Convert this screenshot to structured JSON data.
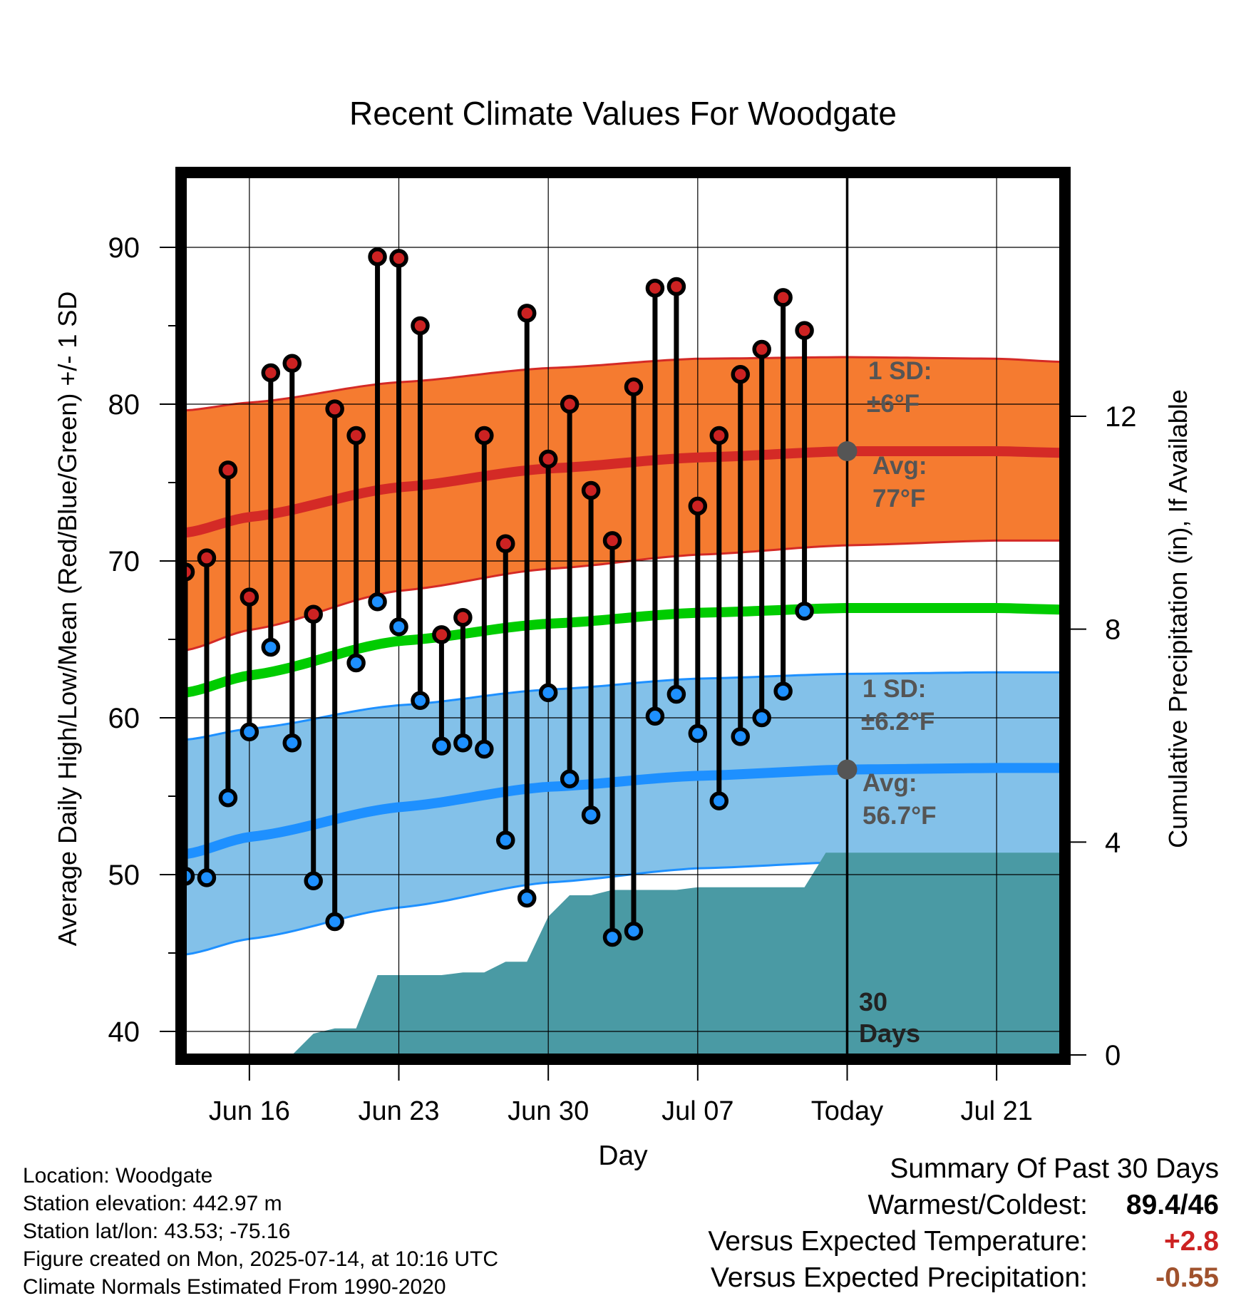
{
  "title": "Recent Climate Values For Woodgate",
  "xlabel": "Day",
  "ylabel_left": "Average Daily High/Low/Mean (Red/Blue/Green) +/- 1 SD",
  "ylabel_right": "Cumulative Precipitation (in), If Available",
  "colors": {
    "high_band": "#f57b30",
    "high_line": "#d42a26",
    "low_band": "#83c1e9",
    "low_line": "#1e90ff",
    "mean_line": "#00cc00",
    "precip": "#4a9aa4",
    "annotation": "#555555",
    "high_dot": "#cc2222",
    "low_dot": "#1e90ff",
    "plus_value": "#cc2222",
    "minus_value": "#a0522d"
  },
  "annotations": {
    "high_sd_1": "1 SD:",
    "high_sd_2": "±6°F",
    "high_avg_1": "Avg:",
    "high_avg_2": "77°F",
    "low_sd_1": "1 SD:",
    "low_sd_2": "±6.2°F",
    "low_avg_1": "Avg:",
    "low_avg_2": "56.7°F",
    "window_1": "30",
    "window_2": "Days"
  },
  "info": {
    "location": "Location: Woodgate",
    "elevation": "Station elevation: 442.97 m",
    "latlon": "Station lat/lon: 43.53; -75.16",
    "created": "Figure created on Mon, 2025-07-14, at 10:16 UTC",
    "normals": "Climate Normals Estimated From 1990-2020"
  },
  "summary": {
    "title": "Summary Of Past 30 Days",
    "warm_cold_label": "Warmest/Coldest:",
    "warm_cold_value": "89.4/46",
    "temp_label": "Versus Expected Temperature:",
    "temp_value": "+2.8",
    "precip_label": "Versus Expected Precipitation:",
    "precip_value": "-0.55"
  },
  "chart_data": {
    "type": "line",
    "x_dates": [
      "2025-06-13",
      "2025-06-14",
      "2025-06-15",
      "2025-06-16",
      "2025-06-17",
      "2025-06-18",
      "2025-06-19",
      "2025-06-20",
      "2025-06-21",
      "2025-06-22",
      "2025-06-23",
      "2025-06-24",
      "2025-06-25",
      "2025-06-26",
      "2025-06-27",
      "2025-06-28",
      "2025-06-29",
      "2025-06-30",
      "2025-07-01",
      "2025-07-02",
      "2025-07-03",
      "2025-07-04",
      "2025-07-05",
      "2025-07-06",
      "2025-07-07",
      "2025-07-08",
      "2025-07-09",
      "2025-07-10",
      "2025-07-11",
      "2025-07-12",
      "2025-07-13",
      "2025-07-14",
      "2025-07-15",
      "2025-07-16",
      "2025-07-17",
      "2025-07-18",
      "2025-07-19",
      "2025-07-20",
      "2025-07-21",
      "2025-07-22",
      "2025-07-23",
      "2025-07-24"
    ],
    "xlim": [
      "2025-06-13",
      "2025-07-24"
    ],
    "x_tick_labels": [
      "Jun 16",
      "Jun 23",
      "Jun 30",
      "Jul 07",
      "Today",
      "Jul 21"
    ],
    "x_tick_dates": [
      "2025-06-16",
      "2025-06-23",
      "2025-06-30",
      "2025-07-07",
      "2025-07-14",
      "2025-07-21"
    ],
    "today": "2025-07-14",
    "ylim": [
      38.5,
      94.5
    ],
    "y_ticks": [
      40,
      50,
      60,
      70,
      80,
      90
    ],
    "y2lim": [
      0,
      16.5
    ],
    "y2_ticks": [
      0,
      4,
      8,
      12
    ],
    "grid": true,
    "observations": {
      "dates": [
        "2025-06-13",
        "2025-06-14",
        "2025-06-15",
        "2025-06-16",
        "2025-06-17",
        "2025-06-18",
        "2025-06-19",
        "2025-06-20",
        "2025-06-21",
        "2025-06-22",
        "2025-06-23",
        "2025-06-24",
        "2025-06-25",
        "2025-06-26",
        "2025-06-27",
        "2025-06-28",
        "2025-06-29",
        "2025-06-30",
        "2025-07-01",
        "2025-07-02",
        "2025-07-03",
        "2025-07-04",
        "2025-07-05",
        "2025-07-06",
        "2025-07-07",
        "2025-07-08",
        "2025-07-09",
        "2025-07-10",
        "2025-07-11",
        "2025-07-12",
        "2025-07-13"
      ],
      "high": [
        69.3,
        70.2,
        75.8,
        67.7,
        82.0,
        82.6,
        66.6,
        79.7,
        78.0,
        89.4,
        89.3,
        85.0,
        65.3,
        66.4,
        78.0,
        71.1,
        85.8,
        76.5,
        80.0,
        74.5,
        71.3,
        81.1,
        87.4,
        87.5,
        73.5,
        78.0,
        81.9,
        83.5,
        86.8,
        84.7,
        null
      ],
      "low": [
        49.9,
        49.8,
        54.9,
        59.1,
        64.5,
        58.4,
        49.6,
        47.0,
        63.5,
        67.4,
        65.8,
        61.1,
        58.2,
        58.4,
        58.0,
        52.2,
        48.5,
        61.6,
        56.1,
        53.8,
        46.0,
        46.4,
        60.1,
        61.5,
        59.0,
        54.7,
        58.8,
        60.0,
        61.7,
        66.8,
        null
      ]
    },
    "normals": {
      "dates": [
        "2025-06-13",
        "2025-06-16",
        "2025-06-23",
        "2025-06-30",
        "2025-07-07",
        "2025-07-14",
        "2025-07-21",
        "2025-07-24"
      ],
      "high_avg": [
        71.8,
        72.8,
        74.7,
        75.9,
        76.6,
        77.0,
        77.0,
        76.9
      ],
      "high_plus_sd": [
        79.6,
        80.1,
        81.4,
        82.3,
        82.9,
        83.0,
        82.9,
        82.7
      ],
      "high_minus_sd": [
        64.3,
        65.6,
        68.1,
        69.5,
        70.4,
        71.0,
        71.3,
        71.3
      ],
      "mean": [
        61.6,
        62.7,
        64.9,
        66.0,
        66.7,
        67.0,
        67.0,
        66.9
      ],
      "low_avg": [
        51.3,
        52.4,
        54.3,
        55.6,
        56.3,
        56.7,
        56.8,
        56.8
      ],
      "low_plus_sd": [
        58.6,
        59.3,
        60.8,
        61.8,
        62.5,
        62.8,
        62.9,
        62.9
      ],
      "low_minus_sd": [
        44.9,
        45.9,
        47.9,
        49.5,
        50.4,
        50.8,
        51.0,
        51.0
      ]
    },
    "cumulative_precip": {
      "dates": [
        "2025-06-18",
        "2025-06-19",
        "2025-06-20",
        "2025-06-21",
        "2025-06-22",
        "2025-06-23",
        "2025-06-24",
        "2025-06-25",
        "2025-06-26",
        "2025-06-27",
        "2025-06-28",
        "2025-06-29",
        "2025-06-30",
        "2025-07-01",
        "2025-07-02",
        "2025-07-03",
        "2025-07-04",
        "2025-07-05",
        "2025-07-06",
        "2025-07-07",
        "2025-07-08",
        "2025-07-09",
        "2025-07-10",
        "2025-07-11",
        "2025-07-12",
        "2025-07-13",
        "2025-07-24"
      ],
      "values": [
        0.0,
        0.4,
        0.5,
        0.5,
        1.5,
        1.5,
        1.5,
        1.5,
        1.55,
        1.55,
        1.75,
        1.75,
        2.6,
        3.0,
        3.0,
        3.1,
        3.1,
        3.1,
        3.1,
        3.15,
        3.15,
        3.15,
        3.15,
        3.15,
        3.15,
        3.8,
        3.8
      ]
    }
  }
}
